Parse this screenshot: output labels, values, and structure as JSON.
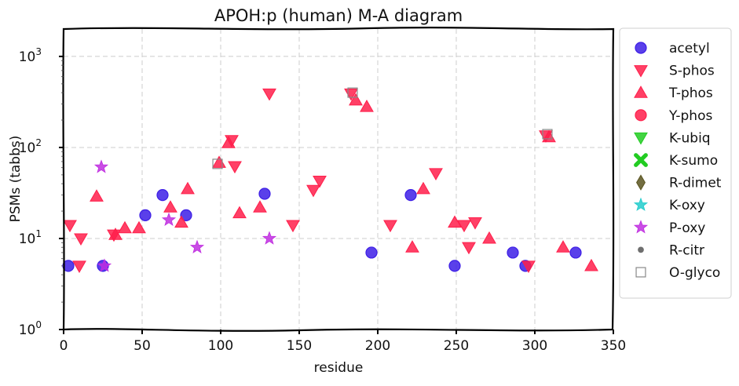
{
  "chart_data": {
    "type": "scatter",
    "title": "APOH:p (human) M-A diagram",
    "xlabel": "residue",
    "ylabel": "PSMs (tabbs)",
    "xlim": [
      0,
      350
    ],
    "ylim": [
      1,
      2000
    ],
    "yscale": "log",
    "grid": true,
    "legend_position": "right-outside",
    "x_ticks": [
      0,
      50,
      100,
      150,
      200,
      250,
      300,
      350
    ],
    "y_ticks": [
      {
        "value": 1,
        "label": "10",
        "exp": "0"
      },
      {
        "value": 10,
        "label": "10",
        "exp": "1"
      },
      {
        "value": 100,
        "label": "10",
        "exp": "2"
      },
      {
        "value": 1000,
        "label": "10",
        "exp": "3"
      }
    ],
    "series": [
      {
        "name": "acetyl",
        "marker": "circle",
        "color": "#3d1ee6",
        "points": [
          [
            3,
            5
          ],
          [
            25,
            5
          ],
          [
            52,
            18
          ],
          [
            63,
            30
          ],
          [
            78,
            18
          ],
          [
            128,
            31
          ],
          [
            196,
            7
          ],
          [
            221,
            30
          ],
          [
            249,
            5
          ],
          [
            286,
            7
          ],
          [
            294,
            5
          ],
          [
            326,
            7
          ]
        ]
      },
      {
        "name": "S-phos",
        "marker": "triangle-down",
        "color": "#ff1f4b",
        "points": [
          [
            4,
            14
          ],
          [
            11,
            10
          ],
          [
            10,
            5
          ],
          [
            32,
            11
          ],
          [
            107,
            120
          ],
          [
            109,
            62
          ],
          [
            131,
            390
          ],
          [
            146,
            14
          ],
          [
            159,
            34
          ],
          [
            163,
            43
          ],
          [
            183,
            390
          ],
          [
            208,
            14
          ],
          [
            237,
            52
          ],
          [
            255,
            14
          ],
          [
            258,
            8
          ],
          [
            262,
            15
          ],
          [
            296,
            5
          ],
          [
            307,
            135
          ]
        ]
      },
      {
        "name": "T-phos",
        "marker": "triangle-up",
        "color": "#ff1f4b",
        "points": [
          [
            21,
            29
          ],
          [
            33,
            11
          ],
          [
            39,
            13
          ],
          [
            48,
            13
          ],
          [
            68,
            22
          ],
          [
            75,
            15
          ],
          [
            79,
            35
          ],
          [
            99,
            68
          ],
          [
            105,
            112
          ],
          [
            112,
            19
          ],
          [
            125,
            22
          ],
          [
            186,
            330
          ],
          [
            193,
            280
          ],
          [
            222,
            8
          ],
          [
            229,
            35
          ],
          [
            249,
            15
          ],
          [
            271,
            10
          ],
          [
            309,
            130
          ],
          [
            318,
            8
          ],
          [
            336,
            5
          ]
        ]
      },
      {
        "name": "Y-phos",
        "marker": "circle",
        "color": "#ff1f4b",
        "points": []
      },
      {
        "name": "K-ubiq",
        "marker": "triangle-down",
        "color": "#22cc22",
        "points": []
      },
      {
        "name": "K-sumo",
        "marker": "x",
        "color": "#22cc22",
        "points": []
      },
      {
        "name": "R-dimet",
        "marker": "diamond",
        "color": "#5a5520",
        "points": []
      },
      {
        "name": "K-oxy",
        "marker": "star",
        "color": "#22cccc",
        "points": []
      },
      {
        "name": "P-oxy",
        "marker": "star",
        "color": "#c02ee0",
        "points": [
          [
            24,
            61
          ],
          [
            26,
            5
          ],
          [
            67,
            16
          ],
          [
            85,
            8
          ],
          [
            131,
            10
          ]
        ]
      },
      {
        "name": "R-citr",
        "marker": "small-circle",
        "color": "#555555",
        "points": []
      },
      {
        "name": "O-glyco",
        "marker": "open-square",
        "color": "#888888",
        "points": [
          [
            98,
            66
          ],
          [
            184,
            400
          ],
          [
            308,
            140
          ]
        ]
      }
    ]
  }
}
